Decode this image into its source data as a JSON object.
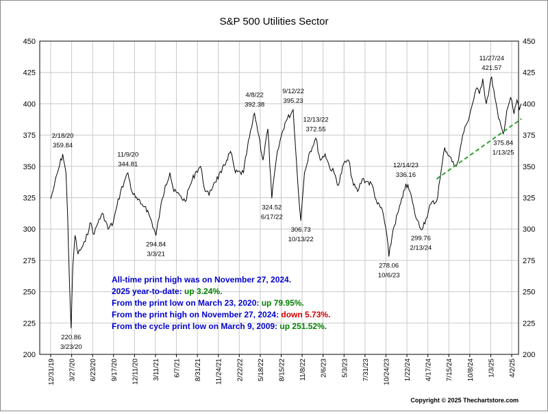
{
  "chart_data": {
    "type": "line",
    "title": "S&P 500 Utilities Sector",
    "xlabel": "",
    "ylabel": "",
    "ylim": [
      200,
      450
    ],
    "yticks": [
      "200",
      "225",
      "250",
      "275",
      "300",
      "325",
      "350",
      "375",
      "400",
      "425",
      "450"
    ],
    "grid": true,
    "x_ticks": [
      "12/31/19",
      "3/27/20",
      "6/23/20",
      "9/17/20",
      "12/11/20",
      "3/11/21",
      "6/7/21",
      "8/31/21",
      "11/24/21",
      "2/22/22",
      "5/18/22",
      "8/15/22",
      "11/8/22",
      "2/6/23",
      "5/3/23",
      "7/31/23",
      "10/24/23",
      "1/22/24",
      "4/17/24",
      "7/15/24",
      "10/8/24",
      "1/3/25",
      "4/2/25"
    ],
    "series": [
      {
        "name": "",
        "color": "#000000",
        "points": [
          [
            "2019-12-31",
            324
          ],
          [
            "2020-01-15",
            335
          ],
          [
            "2020-02-01",
            348
          ],
          [
            "2020-02-18",
            359.84
          ],
          [
            "2020-03-02",
            345
          ],
          [
            "2020-03-09",
            310
          ],
          [
            "2020-03-16",
            260
          ],
          [
            "2020-03-23",
            220.86
          ],
          [
            "2020-03-30",
            270
          ],
          [
            "2020-04-08",
            295
          ],
          [
            "2020-04-20",
            280
          ],
          [
            "2020-05-05",
            285
          ],
          [
            "2020-05-20",
            290
          ],
          [
            "2020-06-08",
            305
          ],
          [
            "2020-06-25",
            296
          ],
          [
            "2020-07-15",
            308
          ],
          [
            "2020-08-01",
            312
          ],
          [
            "2020-08-20",
            300
          ],
          [
            "2020-09-10",
            305
          ],
          [
            "2020-09-25",
            318
          ],
          [
            "2020-10-10",
            330
          ],
          [
            "2020-10-25",
            338
          ],
          [
            "2020-11-09",
            344.81
          ],
          [
            "2020-11-25",
            330
          ],
          [
            "2020-12-10",
            325
          ],
          [
            "2020-12-31",
            320
          ],
          [
            "2021-01-20",
            318
          ],
          [
            "2021-02-10",
            308
          ],
          [
            "2021-03-03",
            294.84
          ],
          [
            "2021-03-20",
            315
          ],
          [
            "2021-04-10",
            335
          ],
          [
            "2021-04-29",
            345
          ],
          [
            "2021-05-15",
            330
          ],
          [
            "2021-06-07",
            327
          ],
          [
            "2021-06-30",
            322
          ],
          [
            "2021-07-20",
            335
          ],
          [
            "2021-08-10",
            345
          ],
          [
            "2021-08-31",
            350
          ],
          [
            "2021-09-20",
            330
          ],
          [
            "2021-10-05",
            327
          ],
          [
            "2021-10-25",
            337
          ],
          [
            "2021-11-24",
            345
          ],
          [
            "2021-12-15",
            355
          ],
          [
            "2021-12-31",
            362
          ],
          [
            "2022-01-20",
            345
          ],
          [
            "2022-02-22",
            345
          ],
          [
            "2022-03-10",
            365
          ],
          [
            "2022-04-08",
            392.38
          ],
          [
            "2022-04-25",
            375
          ],
          [
            "2022-05-12",
            355
          ],
          [
            "2022-06-01",
            380
          ],
          [
            "2022-06-17",
            324.52
          ],
          [
            "2022-07-05",
            355
          ],
          [
            "2022-07-20",
            370
          ],
          [
            "2022-08-10",
            385
          ],
          [
            "2022-09-12",
            395.23
          ],
          [
            "2022-09-28",
            345
          ],
          [
            "2022-10-13",
            306.73
          ],
          [
            "2022-10-28",
            345
          ],
          [
            "2022-11-15",
            360
          ],
          [
            "2022-12-13",
            372.55
          ],
          [
            "2022-12-31",
            355
          ],
          [
            "2023-01-20",
            360
          ],
          [
            "2023-02-06",
            350
          ],
          [
            "2023-02-25",
            345
          ],
          [
            "2023-03-15",
            335
          ],
          [
            "2023-04-05",
            352
          ],
          [
            "2023-04-25",
            355
          ],
          [
            "2023-05-15",
            335
          ],
          [
            "2023-06-01",
            330
          ],
          [
            "2023-06-20",
            340
          ],
          [
            "2023-07-10",
            338
          ],
          [
            "2023-07-31",
            335
          ],
          [
            "2023-08-20",
            320
          ],
          [
            "2023-09-10",
            315
          ],
          [
            "2023-09-28",
            295
          ],
          [
            "2023-10-06",
            278.06
          ],
          [
            "2023-10-24",
            300
          ],
          [
            "2023-11-15",
            315
          ],
          [
            "2023-12-01",
            325
          ],
          [
            "2023-12-14",
            336.16
          ],
          [
            "2023-12-31",
            330
          ],
          [
            "2024-01-20",
            312
          ],
          [
            "2024-02-13",
            299.76
          ],
          [
            "2024-03-05",
            308
          ],
          [
            "2024-03-25",
            320
          ],
          [
            "2024-04-17",
            322
          ],
          [
            "2024-05-01",
            340
          ],
          [
            "2024-05-20",
            365
          ],
          [
            "2024-06-10",
            358
          ],
          [
            "2024-06-28",
            350
          ],
          [
            "2024-07-15",
            355
          ],
          [
            "2024-08-01",
            375
          ],
          [
            "2024-08-20",
            385
          ],
          [
            "2024-09-10",
            400
          ],
          [
            "2024-09-25",
            412
          ],
          [
            "2024-10-08",
            408
          ],
          [
            "2024-10-22",
            420
          ],
          [
            "2024-11-05",
            400
          ],
          [
            "2024-11-27",
            421.57
          ],
          [
            "2024-12-10",
            405
          ],
          [
            "2024-12-25",
            388
          ],
          [
            "2025-01-13",
            375.84
          ],
          [
            "2025-01-28",
            395
          ],
          [
            "2025-02-12",
            405
          ],
          [
            "2025-02-26",
            392
          ],
          [
            "2025-03-10",
            403
          ],
          [
            "2025-03-20",
            395
          ],
          [
            "2025-03-28",
            400
          ]
        ]
      }
    ],
    "trendline": {
      "style": "dashed",
      "color": "#2ca02c",
      "points": [
        [
          "2024-04-17",
          340
        ],
        [
          "2025-03-28",
          388
        ]
      ]
    },
    "annotations": [
      {
        "date": "2/18/20",
        "value": "359.84",
        "x": "2020-02-18",
        "y": 359.84,
        "pos": "above"
      },
      {
        "date": "3/23/20",
        "value": "220.86",
        "x": "2020-03-23",
        "y": 220.86,
        "pos": "below"
      },
      {
        "date": "11/9/20",
        "value": "344.81",
        "x": "2020-11-09",
        "y": 344.81,
        "pos": "above"
      },
      {
        "date": "3/3/21",
        "value": "294.84",
        "x": "2021-03-03",
        "y": 294.84,
        "pos": "below"
      },
      {
        "date": "4/8/22",
        "value": "392.38",
        "x": "2022-04-08",
        "y": 392.38,
        "pos": "above"
      },
      {
        "date": "6/17/22",
        "value": "324.52",
        "x": "2022-06-17",
        "y": 324.52,
        "pos": "below"
      },
      {
        "date": "9/12/22",
        "value": "395.23",
        "x": "2022-09-12",
        "y": 395.23,
        "pos": "above"
      },
      {
        "date": "10/13/22",
        "value": "306.73",
        "x": "2022-10-13",
        "y": 306.73,
        "pos": "below"
      },
      {
        "date": "12/13/22",
        "value": "372.55",
        "x": "2022-12-13",
        "y": 372.55,
        "pos": "above"
      },
      {
        "date": "10/6/23",
        "value": "278.06",
        "x": "2023-10-06",
        "y": 278.06,
        "pos": "below"
      },
      {
        "date": "12/14/23",
        "value": "336.16",
        "x": "2023-12-14",
        "y": 336.16,
        "pos": "above"
      },
      {
        "date": "2/13/24",
        "value": "299.76",
        "x": "2024-02-13",
        "y": 299.76,
        "pos": "below"
      },
      {
        "date": "11/27/24",
        "value": "421.57",
        "x": "2024-11-27",
        "y": 421.57,
        "pos": "above"
      },
      {
        "date": "1/13/25",
        "value": "375.84",
        "x": "2025-01-13",
        "y": 375.84,
        "pos": "below"
      }
    ],
    "info_lines": [
      {
        "parts": [
          {
            "text": "All-time print high was on November 27, 2024.",
            "color": "#0000cc"
          }
        ]
      },
      {
        "parts": [
          {
            "text": "2025 year-to-date:  ",
            "color": "#0000cc"
          },
          {
            "text": "up 3.24%.",
            "color": "#008000"
          }
        ]
      },
      {
        "parts": [
          {
            "text": "From the print low on March 23, 2020:  ",
            "color": "#0000cc"
          },
          {
            "text": "up 79.95%.",
            "color": "#008000"
          }
        ]
      },
      {
        "parts": [
          {
            "text": "From the print high on November 27, 2024:  ",
            "color": "#0000cc"
          },
          {
            "text": "down 5.73%.",
            "color": "#cc0000"
          }
        ]
      },
      {
        "parts": [
          {
            "text": "From the cycle print low on March 9, 2009:  ",
            "color": "#0000cc"
          },
          {
            "text": "up 251.52%.",
            "color": "#008000"
          }
        ]
      }
    ],
    "copyright": "Copyright © 2025 Thechartstore.com"
  }
}
